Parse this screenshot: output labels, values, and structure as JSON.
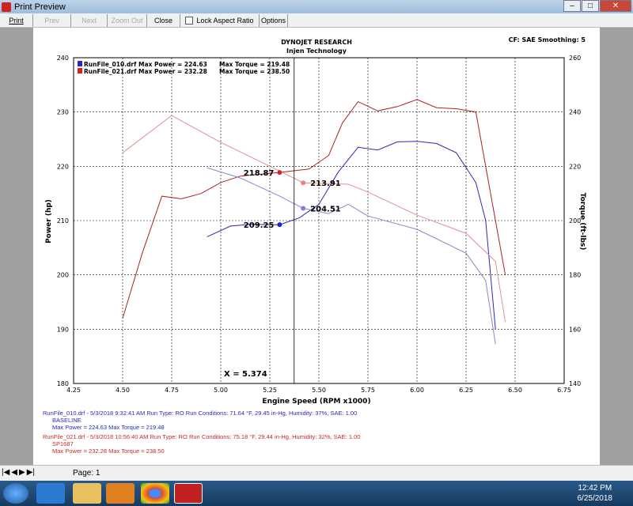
{
  "window": {
    "title": "Print Preview"
  },
  "toolbar": {
    "print": "Print",
    "prev": "Prev",
    "next": "Next",
    "zoom_out": "Zoom Out",
    "close": "Close",
    "lock_aspect": "Lock Aspect Ratio",
    "options": "Options"
  },
  "header": {
    "company": "DYNOJET RESEARCH",
    "subtitle": "Injen Technology",
    "cf": "CF: SAE  Smoothing: 5"
  },
  "legend": [
    {
      "file": "RunFile_010.drf Max Power = 224.63",
      "torque": "Max Torque = 219.48",
      "color": "#2a2ab8"
    },
    {
      "file": "RunFile_021.drf Max Power = 232.28",
      "torque": "Max Torque = 238.50",
      "color": "#c82828"
    }
  ],
  "chart_data": {
    "type": "line",
    "xlabel": "Engine Speed (RPM x1000)",
    "ylabel": "Power (hp)",
    "y2label": "Torque (ft-lbs)",
    "xlim": [
      4.25,
      6.75
    ],
    "ylim": [
      180,
      240
    ],
    "y2lim": [
      140,
      260
    ],
    "xticks": [
      "4.25",
      "4.50",
      "4.75",
      "5.00",
      "5.25",
      "5.50",
      "5.75",
      "6.00",
      "6.25",
      "6.50",
      "6.75"
    ],
    "yticks": [
      "180",
      "190",
      "200",
      "210",
      "220",
      "230",
      "240"
    ],
    "y2ticks": [
      "140",
      "160",
      "180",
      "200",
      "220",
      "240",
      "260"
    ],
    "grid": true,
    "series": [
      {
        "name": "RunFile_010 Power",
        "axis": "left",
        "color": "#2a2ab8",
        "x": [
          4.93,
          5.05,
          5.15,
          5.3,
          5.4,
          5.5,
          5.6,
          5.7,
          5.8,
          5.9,
          6.0,
          6.1,
          6.2,
          6.3,
          6.35,
          6.4
        ],
        "y": [
          207,
          209,
          209.3,
          209.25,
          210.5,
          213,
          219,
          223.5,
          223,
          224.5,
          224.6,
          224.2,
          222.5,
          217,
          210,
          190
        ]
      },
      {
        "name": "RunFile_021 Power",
        "axis": "left",
        "color": "#b02020",
        "x": [
          4.5,
          4.6,
          4.7,
          4.8,
          4.9,
          5.0,
          5.1,
          5.3,
          5.45,
          5.55,
          5.62,
          5.7,
          5.8,
          5.9,
          6.0,
          6.1,
          6.2,
          6.3,
          6.4,
          6.45
        ],
        "y": [
          192,
          204,
          214.5,
          214,
          215,
          217,
          218.2,
          218.87,
          219.5,
          222,
          228,
          231.9,
          230.2,
          231,
          232.3,
          230.8,
          230.6,
          230,
          210,
          200
        ]
      },
      {
        "name": "RunFile_010 Torque",
        "axis": "right",
        "color": "#8888cc",
        "x": [
          4.93,
          5.1,
          5.3,
          5.42,
          5.55,
          5.65,
          5.75,
          6.0,
          6.25,
          6.35,
          6.4
        ],
        "y": [
          219.5,
          215.7,
          209,
          204.51,
          202.6,
          206,
          201.7,
          196.8,
          188,
          177.9,
          154.5
        ]
      },
      {
        "name": "RunFile_021 Torque",
        "axis": "right",
        "color": "#e09090",
        "x": [
          4.5,
          4.75,
          5.0,
          5.25,
          5.42,
          5.65,
          5.75,
          6.0,
          6.25,
          6.4,
          6.45
        ],
        "y": [
          225,
          238.7,
          228.8,
          220,
          213.91,
          213.4,
          210.5,
          202,
          195.3,
          185,
          162.7
        ]
      }
    ],
    "cursor": {
      "x": 5.374,
      "label": "X = 5.374"
    },
    "annotations": [
      {
        "text": "218.87",
        "x": 5.3,
        "y": 218.87,
        "axis": "left",
        "color": "#e02020"
      },
      {
        "text": "213.91",
        "x": 5.42,
        "y": 213.91,
        "axis": "right",
        "color": "#f08080"
      },
      {
        "text": "209.25",
        "x": 5.3,
        "y": 209.25,
        "axis": "left",
        "color": "#2020d0"
      },
      {
        "text": "204.51",
        "x": 5.42,
        "y": 204.51,
        "axis": "right",
        "color": "#8080e0"
      }
    ]
  },
  "footer": [
    {
      "line1": "RunFile_010.drf - 5/3/2018 9:32:41 AM  Run Type: RO  Run Conditions: 71.64 °F, 29.45 in-Hg,  Humidity:  37%, SAE: 1.00",
      "line2": "BASELINE",
      "line3": "Max Power = 224.63  Max Torque = 219.48",
      "color": "#2a2ab8"
    },
    {
      "line1": "RunFile_021.drf - 5/3/2018 10:56:40 AM  Run Type: RO  Run Conditions: 75.18 °F, 29.44 in-Hg,  Humidity:  32%, SAE: 1.00",
      "line2": "SP1687",
      "line3": "Max Power = 232.28  Max Torque = 238.50",
      "color": "#c82828"
    }
  ],
  "status": {
    "page": "Page: 1"
  },
  "taskbar": {
    "time": "12:42 PM",
    "date": "6/25/2018"
  }
}
